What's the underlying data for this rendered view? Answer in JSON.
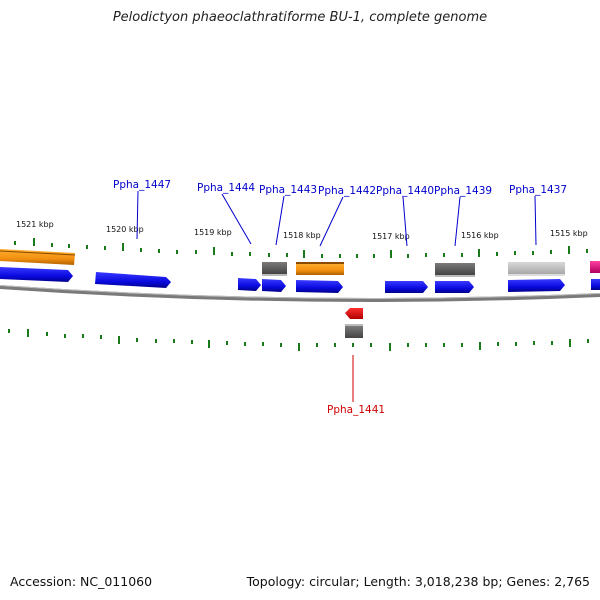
{
  "title": "Pelodictyon phaeoclathratiforme BU-1, complete genome",
  "footer": {
    "accession": "Accession: NC_011060",
    "stats": "Topology: circular; Length: 3,018,238 bp; Genes: 2,765"
  },
  "scale_labels": [
    "1521 kbp",
    "1520 kbp",
    "1519 kbp",
    "1518 kbp",
    "1517 kbp",
    "1516 kbp",
    "1515 kbp"
  ],
  "gene_labels": [
    "Ppha_1447",
    "Ppha_1444",
    "Ppha_1443",
    "Ppha_1442",
    "Ppha_1440",
    "Ppha_1439",
    "Ppha_1437",
    "Ppha_1441"
  ],
  "colors": {
    "forward_label": "#0000cc",
    "reverse_label": "#cc0000",
    "cds": "#1010e8",
    "rna_orange": "#f59a12",
    "gray_dark": "#666666",
    "gray_light": "#c4c4c4",
    "reverse_cds": "#e81010",
    "pink": "#e0207a",
    "backbone": "#888888",
    "tick_green": "#1a7a1a"
  }
}
